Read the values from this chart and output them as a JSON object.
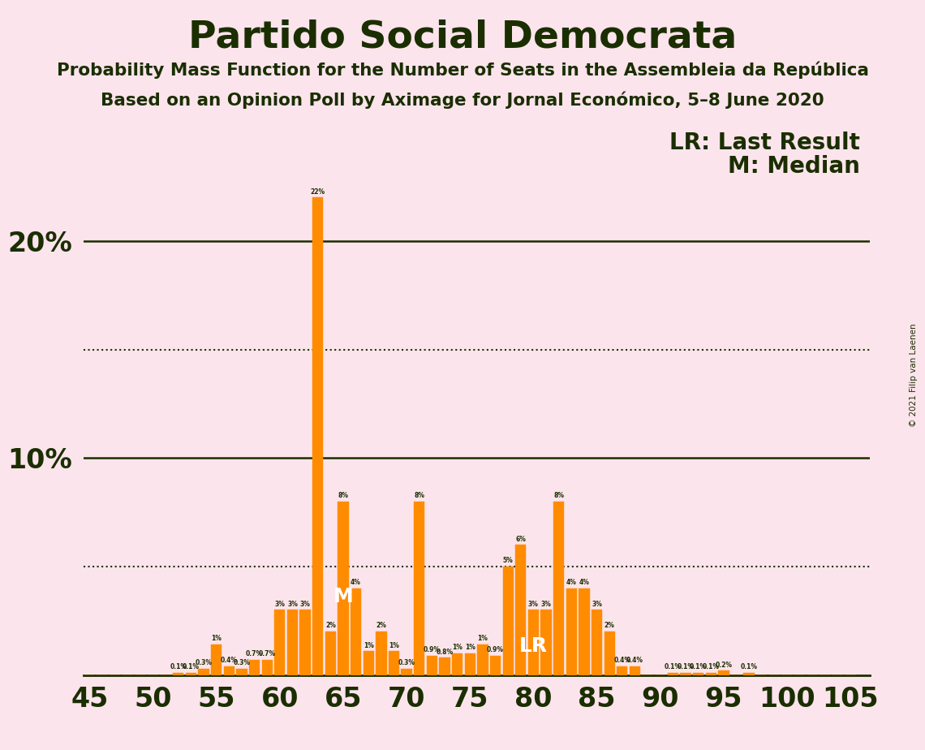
{
  "title": "Partido Social Democrata",
  "subtitle1": "Probability Mass Function for the Number of Seats in the Assembleia da República",
  "subtitle2": "Based on an Opinion Poll by Aximage for Jornal Económico, 5–8 June 2020",
  "copyright": "© 2021 Filip van Laenen",
  "legend_lr": "LR: Last Result",
  "legend_m": "M: Median",
  "background_color": "#fce4ec",
  "bar_color": "#FF8C00",
  "text_color": "#1a2e00",
  "bar_label_color": "#ffffff",
  "x_min": 44.5,
  "x_max": 106.5,
  "y_min": 0,
  "y_max": 23.5,
  "solid_hlines": [
    10.0,
    20.0
  ],
  "dotted_hlines": [
    5.0,
    15.0
  ],
  "lr_seat": 80,
  "median_seat": 65,
  "seats": [
    45,
    46,
    47,
    48,
    49,
    50,
    51,
    52,
    53,
    54,
    55,
    56,
    57,
    58,
    59,
    60,
    61,
    62,
    63,
    64,
    65,
    66,
    67,
    68,
    69,
    70,
    71,
    72,
    73,
    74,
    75,
    76,
    77,
    78,
    79,
    80,
    81,
    82,
    83,
    84,
    85,
    86,
    87,
    88,
    89,
    90,
    91,
    92,
    93,
    94,
    95,
    96,
    97,
    98,
    99,
    100,
    101,
    102,
    103,
    104,
    105
  ],
  "values": [
    0.0,
    0.0,
    0.0,
    0.0,
    0.0,
    0.0,
    0.0,
    0.1,
    0.1,
    0.3,
    1.4,
    0.4,
    0.3,
    0.7,
    0.7,
    3.0,
    3.0,
    3.0,
    22.0,
    2.0,
    8.0,
    4.0,
    1.1,
    2.0,
    1.1,
    0.3,
    8.0,
    0.9,
    0.8,
    1.0,
    1.0,
    1.4,
    0.9,
    5.0,
    6.0,
    3.0,
    3.0,
    8.0,
    4.0,
    4.0,
    3.0,
    2.0,
    0.4,
    0.4,
    0.0,
    0.0,
    0.1,
    0.1,
    0.1,
    0.1,
    0.2,
    0.0,
    0.1,
    0.0,
    0.0,
    0.0,
    0.0,
    0.0,
    0.0,
    0.0,
    0.0
  ]
}
